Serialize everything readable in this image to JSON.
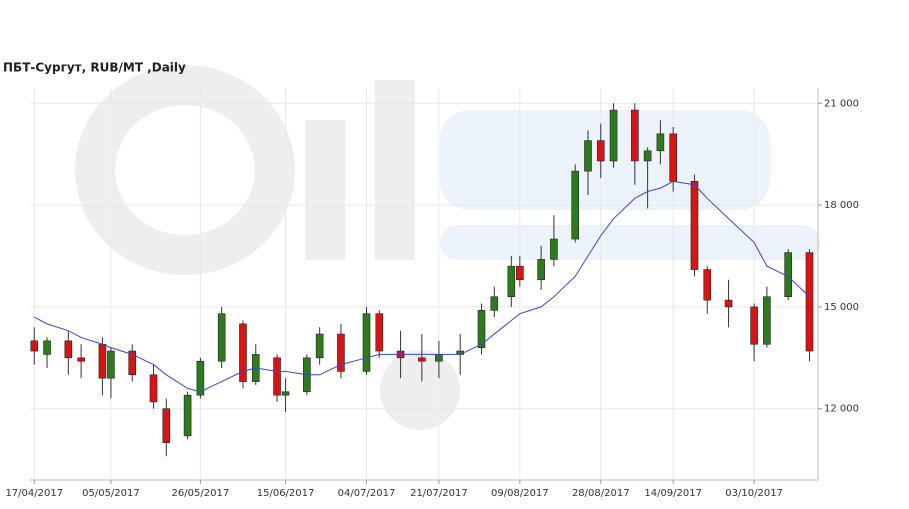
{
  "chart_data": {
    "type": "candlestick",
    "title": "ПБТ-Сургут,  RUB/MT ,Daily",
    "x": [
      "17/04/2017",
      "20/04/2017",
      "25/04/2017",
      "28/04/2017",
      "03/05/2017",
      "05/05/2017",
      "10/05/2017",
      "15/05/2017",
      "18/05/2017",
      "23/05/2017",
      "26/05/2017",
      "31/05/2017",
      "05/06/2017",
      "08/06/2017",
      "13/06/2017",
      "15/06/2017",
      "20/06/2017",
      "23/06/2017",
      "28/06/2017",
      "04/07/2017",
      "07/07/2017",
      "12/07/2017",
      "17/07/2017",
      "21/07/2017",
      "26/07/2017",
      "31/07/2017",
      "03/08/2017",
      "07/08/2017",
      "09/08/2017",
      "14/08/2017",
      "17/08/2017",
      "22/08/2017",
      "25/08/2017",
      "28/08/2017",
      "31/08/2017",
      "05/09/2017",
      "08/09/2017",
      "11/09/2017",
      "14/09/2017",
      "19/09/2017",
      "22/09/2017",
      "27/09/2017",
      "03/10/2017",
      "06/10/2017",
      "11/10/2017",
      "16/10/2017"
    ],
    "open": [
      14000,
      13600,
      14000,
      13500,
      13900,
      12900,
      13700,
      13000,
      12000,
      11200,
      12400,
      13400,
      14500,
      12800,
      13500,
      12400,
      12500,
      13500,
      14200,
      13100,
      14800,
      13700,
      13500,
      13400,
      13600,
      13800,
      14900,
      15300,
      16200,
      15800,
      16400,
      17000,
      19000,
      19900,
      19300,
      20800,
      19300,
      19600,
      20100,
      18700,
      16100,
      15200,
      15000,
      13900,
      15300,
      16600
    ],
    "high": [
      14400,
      14100,
      14300,
      13900,
      14100,
      13800,
      13900,
      13300,
      12300,
      12500,
      13500,
      15000,
      14600,
      13900,
      13600,
      12900,
      13600,
      14400,
      14500,
      15000,
      14900,
      14300,
      14200,
      14000,
      14200,
      15100,
      15600,
      16500,
      16500,
      16800,
      17700,
      19200,
      20200,
      20400,
      21000,
      21000,
      19700,
      20500,
      20300,
      18900,
      16200,
      15800,
      15100,
      15600,
      16700,
      16700
    ],
    "low": [
      13300,
      13200,
      13000,
      12900,
      12400,
      12300,
      12800,
      12000,
      10600,
      11100,
      12300,
      13200,
      12600,
      12700,
      12200,
      11900,
      12400,
      13300,
      12900,
      13000,
      13500,
      12900,
      12800,
      12900,
      13000,
      13600,
      14700,
      15000,
      15600,
      15500,
      16200,
      16900,
      18300,
      18800,
      19100,
      18600,
      17900,
      19200,
      18400,
      15900,
      14800,
      14400,
      13400,
      13800,
      15200,
      13400
    ],
    "close": [
      13700,
      14000,
      13500,
      13400,
      12900,
      13700,
      13000,
      12200,
      11000,
      12400,
      13400,
      14800,
      12800,
      13600,
      12400,
      12500,
      13500,
      14200,
      13100,
      14800,
      13700,
      13500,
      13400,
      13600,
      13700,
      14900,
      15300,
      16200,
      15800,
      16400,
      17000,
      19000,
      19900,
      19300,
      20800,
      19300,
      19600,
      20100,
      18700,
      16100,
      15200,
      15000,
      13900,
      15300,
      16600,
      13700
    ],
    "up_color": "#2f7a1f",
    "down_color": "#d81414",
    "series": [
      {
        "color": "#3a46d0",
        "values": [
          14700,
          14500,
          14300,
          14100,
          13900,
          13800,
          13600,
          13300,
          13000,
          12600,
          12500,
          12800,
          13100,
          13200,
          13100,
          13100,
          13000,
          13000,
          13300,
          13500,
          13600,
          13600,
          13600,
          13600,
          13600,
          13900,
          14200,
          14600,
          14800,
          15000,
          15300,
          15900,
          16500,
          17100,
          17600,
          18200,
          18400,
          18500,
          18700,
          18600,
          18200,
          17600,
          16900,
          16200,
          15900,
          15300
        ]
      }
    ],
    "xlim": [
      "16/04/2017",
      "18/10/2017"
    ],
    "xticks": [
      "17/04/2017",
      "05/05/2017",
      "26/05/2017",
      "15/06/2017",
      "04/07/2017",
      "21/07/2017",
      "09/08/2017",
      "28/08/2017",
      "14/09/2017",
      "03/10/2017"
    ],
    "ylim": [
      9900,
      21450
    ],
    "yticks": [
      {
        "value": 12000,
        "label": "12 000"
      },
      {
        "value": 15000,
        "label": "15 000"
      },
      {
        "value": 18000,
        "label": "18 000"
      },
      {
        "value": 21000,
        "label": "21 000"
      }
    ],
    "grid": true
  }
}
